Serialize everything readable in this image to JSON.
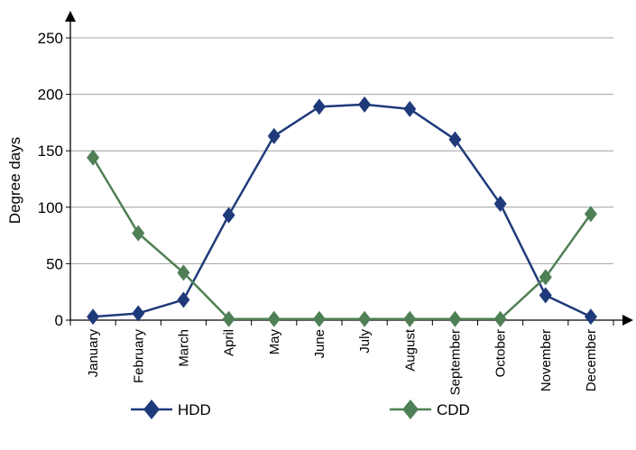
{
  "chart_data": {
    "type": "line",
    "title": "",
    "xlabel": "",
    "ylabel": "Degree days",
    "ylim": [
      0,
      250
    ],
    "yticks": [
      0,
      50,
      100,
      150,
      200,
      250
    ],
    "grid": true,
    "legend_position": "bottom",
    "categories": [
      "January",
      "February",
      "March",
      "April",
      "May",
      "June",
      "July",
      "August",
      "September",
      "October",
      "November",
      "December"
    ],
    "series": [
      {
        "name": "HDD",
        "color": "#1f3a7a",
        "marker": "diamond",
        "values": [
          3,
          6,
          18,
          93,
          163,
          189,
          191,
          187,
          160,
          103,
          22,
          3
        ]
      },
      {
        "name": "CDD",
        "color": "#4f7f55",
        "marker": "diamond",
        "values": [
          144,
          77,
          42,
          1,
          1,
          1,
          1,
          1,
          1,
          1,
          38,
          94
        ]
      }
    ]
  }
}
